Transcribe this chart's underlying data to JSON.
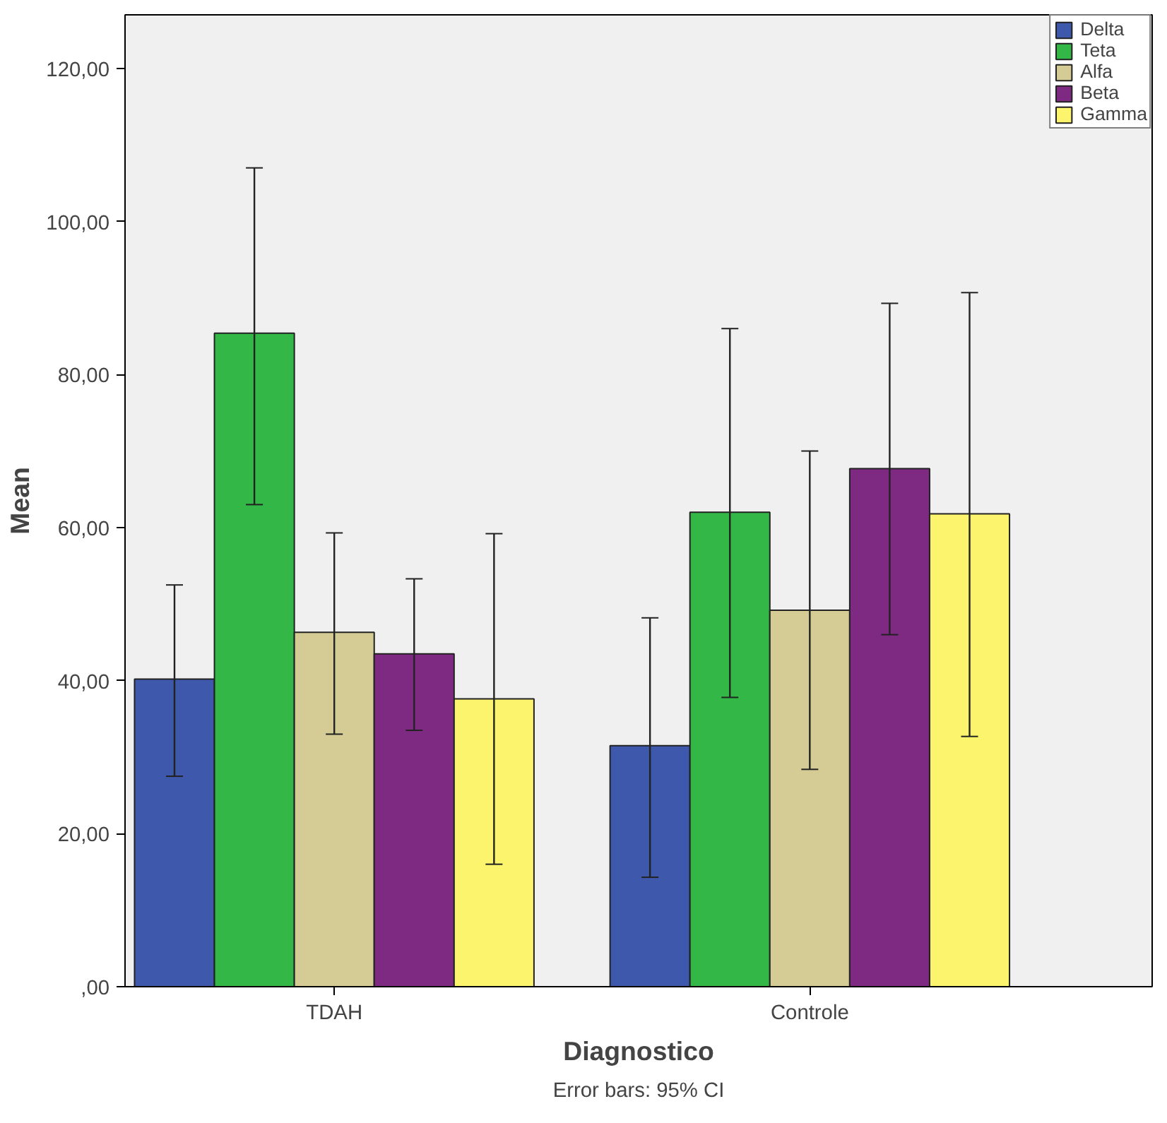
{
  "chart_data": {
    "type": "bar",
    "xlabel": "Diagnostico",
    "ylabel": "Mean",
    "categories": [
      "TDAH",
      "Controle"
    ],
    "series": [
      {
        "name": "Delta",
        "color": "#3e58ac",
        "values": [
          40.2,
          31.5
        ],
        "errors": [
          [
            27.5,
            52.5
          ],
          [
            14.3,
            48.2
          ]
        ]
      },
      {
        "name": "Teta",
        "color": "#33b848",
        "values": [
          85.4,
          62.0
        ],
        "errors": [
          [
            63.0,
            107.0
          ],
          [
            37.8,
            86.0
          ]
        ]
      },
      {
        "name": "Alfa",
        "color": "#d4cc94",
        "values": [
          46.3,
          49.2
        ],
        "errors": [
          [
            33.0,
            59.3
          ],
          [
            28.4,
            70.0
          ]
        ]
      },
      {
        "name": "Beta",
        "color": "#7e2a82",
        "values": [
          43.5,
          67.7
        ],
        "errors": [
          [
            33.5,
            53.3
          ],
          [
            46.0,
            89.3
          ]
        ]
      },
      {
        "name": "Gamma",
        "color": "#fbf46c",
        "values": [
          37.6,
          61.8
        ],
        "errors": [
          [
            16.0,
            59.2
          ],
          [
            32.7,
            90.7
          ]
        ]
      }
    ],
    "ylim": [
      0,
      127
    ],
    "yticks": [
      {
        "value": 0,
        "label": ",00"
      },
      {
        "value": 20,
        "label": "20,00"
      },
      {
        "value": 40,
        "label": "40,00"
      },
      {
        "value": 60,
        "label": "60,00"
      },
      {
        "value": 80,
        "label": "80,00"
      },
      {
        "value": 100,
        "label": "100,00"
      },
      {
        "value": 120,
        "label": "120,00"
      }
    ],
    "grid": false,
    "legend": "top right",
    "annotations": [
      "Error bars: 95% CI"
    ]
  }
}
